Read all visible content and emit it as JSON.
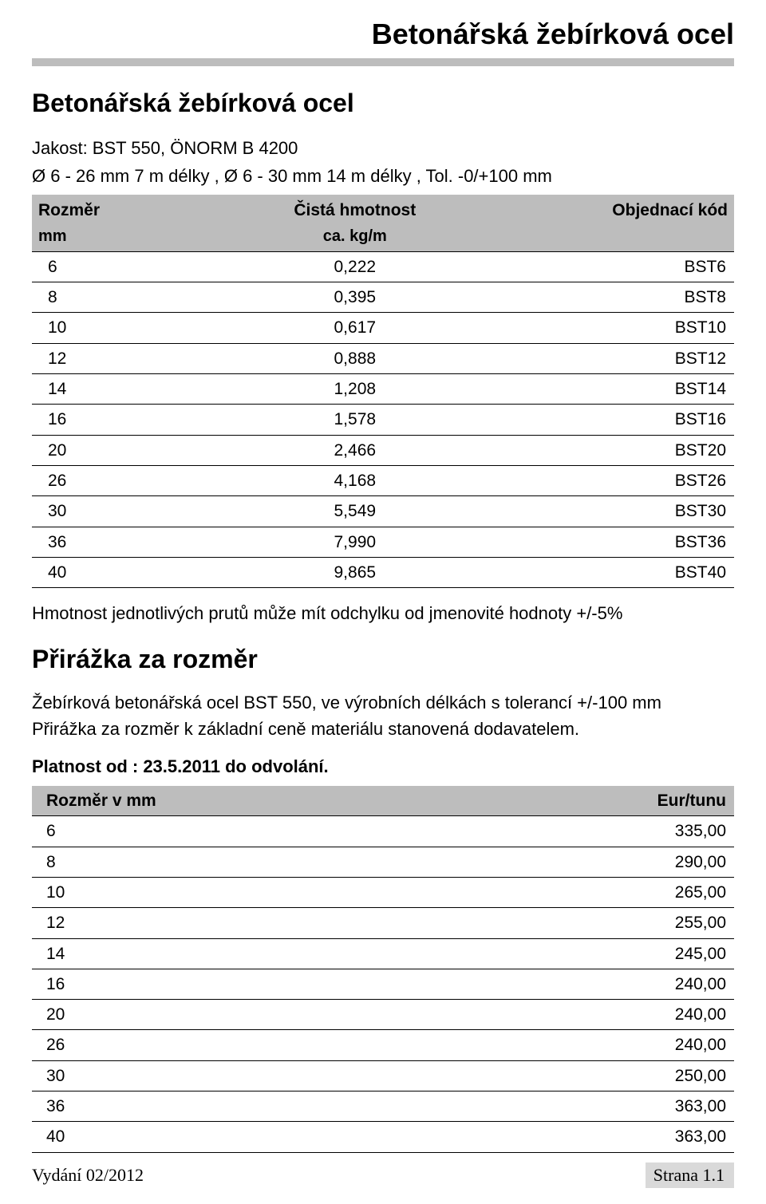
{
  "page_title": "Betonářská žebírková ocel",
  "title_rule_color": "#bdbdbd",
  "section_title": "Betonářská žebírková ocel",
  "intro": {
    "line1": "Jakost: BST 550, ÖNORM B 4200",
    "line2": "Ø 6 - 26 mm 7 m délky , Ø 6 - 30 mm 14 m délky , Tol. -0/+100 mm"
  },
  "table1": {
    "type": "table",
    "header": {
      "size": "Rozměr",
      "weight": "Čistá hmotnost",
      "code": "Objednací kód",
      "size_sub": "mm",
      "weight_sub": "ca. kg/m"
    },
    "header_bg": "#bdbdbd",
    "row_border_color": "#000000",
    "columns": [
      "size",
      "weight",
      "code"
    ],
    "rows": [
      {
        "size": "6",
        "weight": "0,222",
        "code": "BST6"
      },
      {
        "size": "8",
        "weight": "0,395",
        "code": "BST8"
      },
      {
        "size": "10",
        "weight": "0,617",
        "code": "BST10"
      },
      {
        "size": "12",
        "weight": "0,888",
        "code": "BST12"
      },
      {
        "size": "14",
        "weight": "1,208",
        "code": "BST14"
      },
      {
        "size": "16",
        "weight": "1,578",
        "code": "BST16"
      },
      {
        "size": "20",
        "weight": "2,466",
        "code": "BST20"
      },
      {
        "size": "26",
        "weight": "4,168",
        "code": "BST26"
      },
      {
        "size": "30",
        "weight": "5,549",
        "code": "BST30"
      },
      {
        "size": "36",
        "weight": "7,990",
        "code": "BST36"
      },
      {
        "size": "40",
        "weight": "9,865",
        "code": "BST40"
      }
    ]
  },
  "note": "Hmotnost jednotlivých prutů může mít odchylku od jmenovité hodnoty +/-5%",
  "subheading": "Přirážka za rozměr",
  "para1": "Žebírková betonářská ocel BST 550, ve výrobních délkách s tolerancí +/-100 mm",
  "para2": "Přirážka za rozměr k základní ceně materiálu stanovená dodavatelem.",
  "validity": "Platnost od : 23.5.2011 do odvolání.",
  "table2": {
    "type": "table",
    "header_bg": "#bdbdbd",
    "row_border_color": "#000000",
    "header": {
      "left": "Rozměr v mm",
      "right": "Eur/tunu"
    },
    "columns": [
      "size",
      "price"
    ],
    "rows": [
      {
        "size": "6",
        "price": "335,00"
      },
      {
        "size": "8",
        "price": "290,00"
      },
      {
        "size": "10",
        "price": "265,00"
      },
      {
        "size": "12",
        "price": "255,00"
      },
      {
        "size": "14",
        "price": "245,00"
      },
      {
        "size": "16",
        "price": "240,00"
      },
      {
        "size": "20",
        "price": "240,00"
      },
      {
        "size": "26",
        "price": "240,00"
      },
      {
        "size": "30",
        "price": "250,00"
      },
      {
        "size": "36",
        "price": "363,00"
      },
      {
        "size": "40",
        "price": "363,00"
      }
    ]
  },
  "footer": {
    "left": "Vydání 02/2012",
    "right": "Strana 1.1",
    "right_bg": "#d9d9d9"
  }
}
